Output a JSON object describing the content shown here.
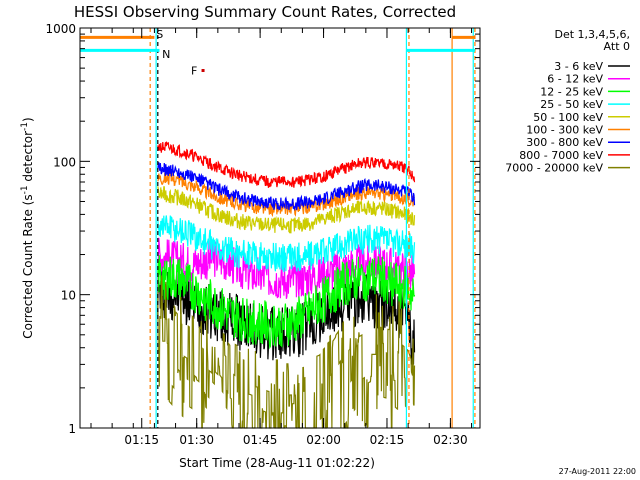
{
  "chart_data": {
    "type": "line",
    "title": "HESSI Observing Summary Count Rates, Corrected",
    "xlabel": "Start Time (28-Aug-11 01:02:22)",
    "ylabel": "Corrected Count Rate (s-1 detector-1)",
    "ylabel_parts": {
      "before": "Corrected Count Rate (s",
      "sup1": "-1",
      "middle": " detector",
      "sup2": "-1",
      "after": ")"
    },
    "y_scale": "log",
    "ylim": [
      1,
      1000
    ],
    "xlim_minutes": [
      62.4,
      157.0
    ],
    "x_ticks": [
      {
        "t": 77,
        "label": "01:15"
      },
      {
        "t": 90,
        "label": "01:30"
      },
      {
        "t": 105,
        "label": "01:45"
      },
      {
        "t": 120,
        "label": "02:00"
      },
      {
        "t": 135,
        "label": "02:15"
      },
      {
        "t": 150,
        "label": "02:30"
      }
    ],
    "y_ticks": [
      {
        "v": 1,
        "label": "1"
      },
      {
        "v": 10,
        "label": "10"
      },
      {
        "v": 100,
        "label": "100"
      },
      {
        "v": 1000,
        "label": "1000"
      }
    ],
    "legend_header": [
      "Det 1,3,4,5,6,",
      "Att 0"
    ],
    "legend_placement": "right",
    "timestamp": "27-Aug-2011 22:00",
    "time_minutes": [
      80.8,
      83,
      86,
      89,
      92,
      95,
      98,
      101,
      104,
      107,
      110,
      113,
      116,
      119,
      122,
      125,
      128,
      131,
      134,
      137,
      140,
      141.5
    ],
    "series": [
      {
        "name": "3 - 6 keV",
        "color": "#000000",
        "noise": 0.42,
        "values": [
          10.5,
          10.5,
          10,
          9,
          8,
          7,
          6.5,
          6,
          5.5,
          5,
          5,
          5.2,
          5.8,
          6.5,
          7.5,
          8.5,
          9,
          9,
          8.5,
          8,
          6,
          4
        ]
      },
      {
        "name": "6 - 12 keV",
        "color": "#ff00ff",
        "noise": 0.3,
        "values": [
          20,
          19,
          18,
          17,
          18,
          19,
          17,
          15,
          14,
          13.5,
          13,
          13,
          13.5,
          14,
          15,
          16,
          17,
          17.5,
          17,
          16,
          15,
          14
        ]
      },
      {
        "name": "12 - 25 keV",
        "color": "#00ff00",
        "noise": 0.35,
        "values": [
          14,
          13.5,
          13,
          11,
          9.5,
          8,
          7,
          6.5,
          6.2,
          6,
          6,
          6.2,
          7,
          8.5,
          10.5,
          12,
          13,
          13.5,
          13,
          12,
          11,
          9
        ]
      },
      {
        "name": "25 - 50 keV",
        "color": "#00ffff",
        "noise": 0.22,
        "values": [
          34,
          33,
          31,
          28,
          25,
          22.5,
          21,
          20,
          19.5,
          19,
          19,
          19,
          19.5,
          20.5,
          22,
          24,
          25.5,
          26,
          25.5,
          24.5,
          23,
          22
        ]
      },
      {
        "name": "50 - 100 keV",
        "color": "#cccc00",
        "noise": 0.12,
        "values": [
          57,
          56,
          53,
          49,
          44,
          40,
          37,
          35,
          34,
          33,
          33,
          33,
          34,
          36,
          39,
          42,
          44,
          45,
          44,
          42,
          39,
          36
        ]
      },
      {
        "name": "100 - 300 keV",
        "color": "#ff8000",
        "noise": 0.1,
        "values": [
          76,
          75,
          72,
          66,
          60,
          54,
          50,
          47,
          45,
          44,
          44,
          44,
          45,
          47,
          50,
          54,
          57,
          58,
          57,
          55,
          52,
          48
        ]
      },
      {
        "name": "300 - 800 keV",
        "color": "#0000ff",
        "noise": 0.1,
        "values": [
          88,
          87,
          83,
          76,
          69,
          62,
          56,
          53,
          51,
          49,
          48,
          48,
          49,
          51,
          55,
          60,
          64,
          66,
          65,
          62,
          58,
          52
        ]
      },
      {
        "name": "800 - 7000 keV",
        "color": "#ff0000",
        "noise": 0.09,
        "values": [
          128,
          126,
          120,
          110,
          100,
          90,
          82,
          77,
          73,
          70,
          70,
          70,
          72,
          75,
          81,
          89,
          95,
          98,
          97,
          93,
          86,
          75
        ]
      },
      {
        "name": "7000 - 20000 keV",
        "color": "#808000",
        "noise": 1.0,
        "values": [
          4.5,
          4.5,
          3.5,
          3,
          2.5,
          2,
          1.5,
          1.3,
          1.2,
          1.1,
          1.1,
          1.1,
          1.2,
          1.3,
          1.6,
          2.2,
          2.8,
          3.2,
          3.2,
          3,
          2.5,
          1.8
        ]
      }
    ],
    "level_segments": [
      {
        "color": "#ff8000",
        "y": 850,
        "t0": 62.4,
        "t1": 80.0
      },
      {
        "color": "#00ffff",
        "y": 680,
        "t0": 62.4,
        "t1": 81.2
      },
      {
        "color": "#ff8000",
        "y": 850,
        "t0": 150.4,
        "t1": 155.8
      },
      {
        "color": "#00ffff",
        "y": 680,
        "t0": 139.6,
        "t1": 155.8
      }
    ],
    "markers": [
      {
        "name": "saa-start",
        "label": "S",
        "label_color": "#ff8000",
        "t": 79.0,
        "color": "#ff8000",
        "style": "dashed",
        "label_y": 900
      },
      {
        "name": "night-start",
        "label": "N",
        "label_color": "#00ffff",
        "t": 80.4,
        "color": "#00ffff",
        "style": "solid",
        "label_y": 640
      },
      {
        "name": "data-start",
        "label": "",
        "t": 80.8,
        "color": "#000000",
        "style": "dashed"
      },
      {
        "name": "night-end",
        "label": "",
        "t": 139.6,
        "color": "#00ffff",
        "style": "solid"
      },
      {
        "name": "saa-end",
        "label": "",
        "t": 140.2,
        "color": "#ff8000",
        "style": "dashed"
      },
      {
        "name": "next-saa-start",
        "label": "",
        "t": 150.4,
        "color": "#ff8000",
        "style": "solid"
      },
      {
        "name": "next-night-start",
        "label": "",
        "t": 155.4,
        "color": "#00ffff",
        "style": "solid"
      },
      {
        "name": "next-saa-dash",
        "label": "",
        "t": 155.8,
        "color": "#ff8000",
        "style": "dashed"
      }
    ],
    "flare_marker": {
      "label": "F",
      "t": 91.5,
      "y": 480,
      "color": "#cc0000"
    }
  }
}
